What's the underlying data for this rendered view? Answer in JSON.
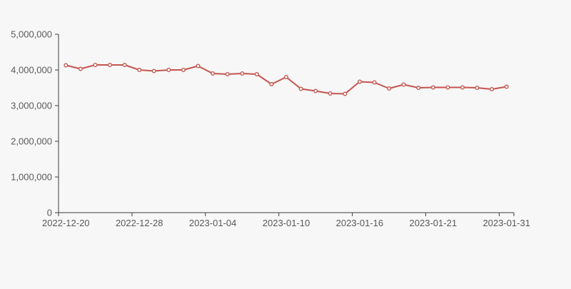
{
  "page": {
    "background_color": "#f7f7f7"
  },
  "chart_data": {
    "type": "line",
    "title": "",
    "xlabel": "",
    "ylabel": "",
    "ylim": [
      0,
      5000000
    ],
    "y_ticks": [
      0,
      1000000,
      2000000,
      3000000,
      4000000,
      5000000
    ],
    "y_tick_labels": [
      "0",
      "1,000,000",
      "2,000,000",
      "3,000,000",
      "4,000,000",
      "5,000,000"
    ],
    "x_tick_labels": [
      "2022-12-20",
      "2022-12-28",
      "2023-01-04",
      "2023-01-10",
      "2023-01-16",
      "2023-01-21",
      "2023-01-31"
    ],
    "x_label_point_indices": [
      0,
      5,
      10,
      15,
      20,
      25,
      30
    ],
    "x_tick_boundary_indices": [
      0,
      5,
      10,
      15,
      20,
      25,
      30,
      31
    ],
    "num_points": 31,
    "grid": false,
    "legend": "none",
    "axis_color": "#3e3e3e",
    "label_color": "#595959",
    "series": [
      {
        "name": "value",
        "color": "#c4554e",
        "marker": "open-circle",
        "marker_fill": "#ffffff",
        "values": [
          4130000,
          4030000,
          4140000,
          4140000,
          4140000,
          4000000,
          3970000,
          4000000,
          4000000,
          4110000,
          3900000,
          3880000,
          3900000,
          3880000,
          3600000,
          3800000,
          3470000,
          3410000,
          3340000,
          3330000,
          3670000,
          3650000,
          3480000,
          3590000,
          3500000,
          3510000,
          3510000,
          3510000,
          3500000,
          3460000,
          3530000
        ]
      }
    ]
  }
}
